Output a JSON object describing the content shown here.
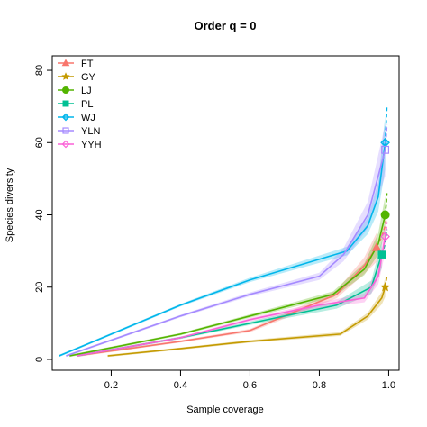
{
  "chart_data": {
    "type": "line",
    "title": "Order q = 0",
    "xlabel": "Sample coverage",
    "ylabel": "Species diversity",
    "xlim": [
      0.03,
      1.03
    ],
    "ylim": [
      -3,
      84
    ],
    "xticks": [
      0.2,
      0.4,
      0.6,
      0.8,
      1.0
    ],
    "xtick_labels": [
      "0.2",
      "0.4",
      "0.6",
      "0.8",
      "1.0"
    ],
    "yticks": [
      0,
      20,
      40,
      60,
      80
    ],
    "ytick_labels": [
      "0",
      "20",
      "40",
      "60",
      "80"
    ],
    "legend_position": "top-left",
    "series": [
      {
        "name": "FT",
        "color": "#F8766D",
        "marker": "triangle",
        "values": [
          [
            0.1,
            1
          ],
          [
            0.4,
            5
          ],
          [
            0.6,
            8
          ],
          [
            0.85,
            18
          ],
          [
            0.93,
            26
          ],
          [
            0.965,
            31
          ]
        ],
        "extrapolated": [
          [
            0.965,
            31
          ],
          [
            0.98,
            34
          ],
          [
            0.99,
            37
          ],
          [
            0.995,
            40
          ]
        ]
      },
      {
        "name": "GY",
        "color": "#C49A00",
        "marker": "star",
        "values": [
          [
            0.19,
            1
          ],
          [
            0.4,
            3
          ],
          [
            0.6,
            5
          ],
          [
            0.86,
            7
          ],
          [
            0.94,
            12
          ],
          [
            0.98,
            17
          ],
          [
            0.99,
            20
          ]
        ],
        "extrapolated": [
          [
            0.99,
            20
          ],
          [
            0.993,
            22
          ],
          [
            0.995,
            23
          ]
        ]
      },
      {
        "name": "LJ",
        "color": "#53B400",
        "marker": "circle",
        "values": [
          [
            0.08,
            1
          ],
          [
            0.4,
            7
          ],
          [
            0.6,
            12
          ],
          [
            0.84,
            18
          ],
          [
            0.93,
            25
          ],
          [
            0.97,
            32
          ],
          [
            0.99,
            40
          ]
        ],
        "extrapolated": [
          [
            0.99,
            40
          ],
          [
            0.993,
            43
          ],
          [
            0.995,
            46
          ]
        ]
      },
      {
        "name": "PL",
        "color": "#00C094",
        "marker": "square",
        "values": [
          [
            0.1,
            1
          ],
          [
            0.4,
            6
          ],
          [
            0.6,
            10
          ],
          [
            0.85,
            15
          ],
          [
            0.95,
            20
          ],
          [
            0.98,
            29
          ]
        ],
        "extrapolated": [
          [
            0.98,
            29
          ],
          [
            0.99,
            32
          ],
          [
            0.995,
            36
          ]
        ]
      },
      {
        "name": "WJ",
        "color": "#00B6EB",
        "marker": "diamond",
        "values": [
          [
            0.05,
            1
          ],
          [
            0.4,
            15
          ],
          [
            0.6,
            22
          ],
          [
            0.88,
            30
          ],
          [
            0.94,
            37
          ],
          [
            0.97,
            45
          ],
          [
            0.99,
            60
          ]
        ],
        "extrapolated": [
          [
            0.99,
            60
          ],
          [
            0.993,
            66
          ],
          [
            0.995,
            70
          ]
        ]
      },
      {
        "name": "YLN",
        "color": "#A58AFF",
        "marker": "square-open",
        "values": [
          [
            0.07,
            1
          ],
          [
            0.4,
            12
          ],
          [
            0.6,
            18
          ],
          [
            0.8,
            23
          ],
          [
            0.87,
            29
          ],
          [
            0.94,
            40
          ],
          [
            0.99,
            58
          ]
        ],
        "extrapolated": [
          [
            0.99,
            58
          ],
          [
            0.993,
            62
          ],
          [
            0.995,
            65
          ]
        ]
      },
      {
        "name": "YYH",
        "color": "#FB61D7",
        "marker": "diamond-open",
        "values": [
          [
            0.1,
            1
          ],
          [
            0.4,
            6
          ],
          [
            0.6,
            11
          ],
          [
            0.8,
            15
          ],
          [
            0.93,
            17
          ],
          [
            0.97,
            23
          ],
          [
            0.99,
            34
          ]
        ],
        "extrapolated": [
          [
            0.99,
            34
          ],
          [
            0.993,
            36
          ],
          [
            0.995,
            38
          ]
        ]
      }
    ]
  }
}
